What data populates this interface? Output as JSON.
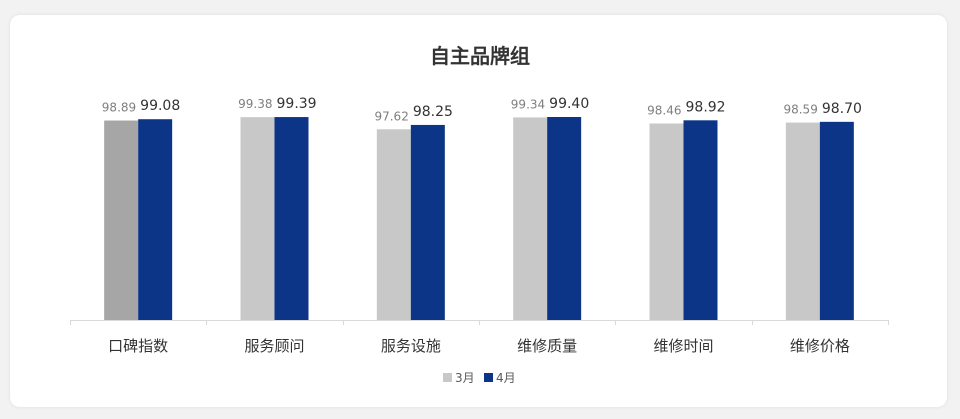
{
  "chart_data": {
    "type": "bar",
    "title": "自主品牌组",
    "categories": [
      "口碑指数",
      "服务顾问",
      "服务设施",
      "维修质量",
      "维修时间",
      "维修价格"
    ],
    "series": [
      {
        "name": "3月",
        "values": [
          98.89,
          99.38,
          97.62,
          99.34,
          98.46,
          98.59
        ],
        "labels": [
          "98.89",
          "99.38",
          "97.62",
          "99.34",
          "98.46",
          "98.59"
        ],
        "color": "#c8c8c8"
      },
      {
        "name": "4月",
        "values": [
          99.08,
          99.39,
          98.25,
          99.4,
          98.92,
          98.7
        ],
        "labels": [
          "99.08",
          "99.39",
          "98.25",
          "99.40",
          "98.92",
          "98.70"
        ],
        "color": "#0c3587"
      }
    ],
    "highlight": {
      "series": 0,
      "index": 0,
      "color": "#a6a6a6"
    },
    "xlabel": "",
    "ylabel": "",
    "ylim": [
      70,
      100
    ],
    "grid": false,
    "legend": "bottom-center"
  }
}
